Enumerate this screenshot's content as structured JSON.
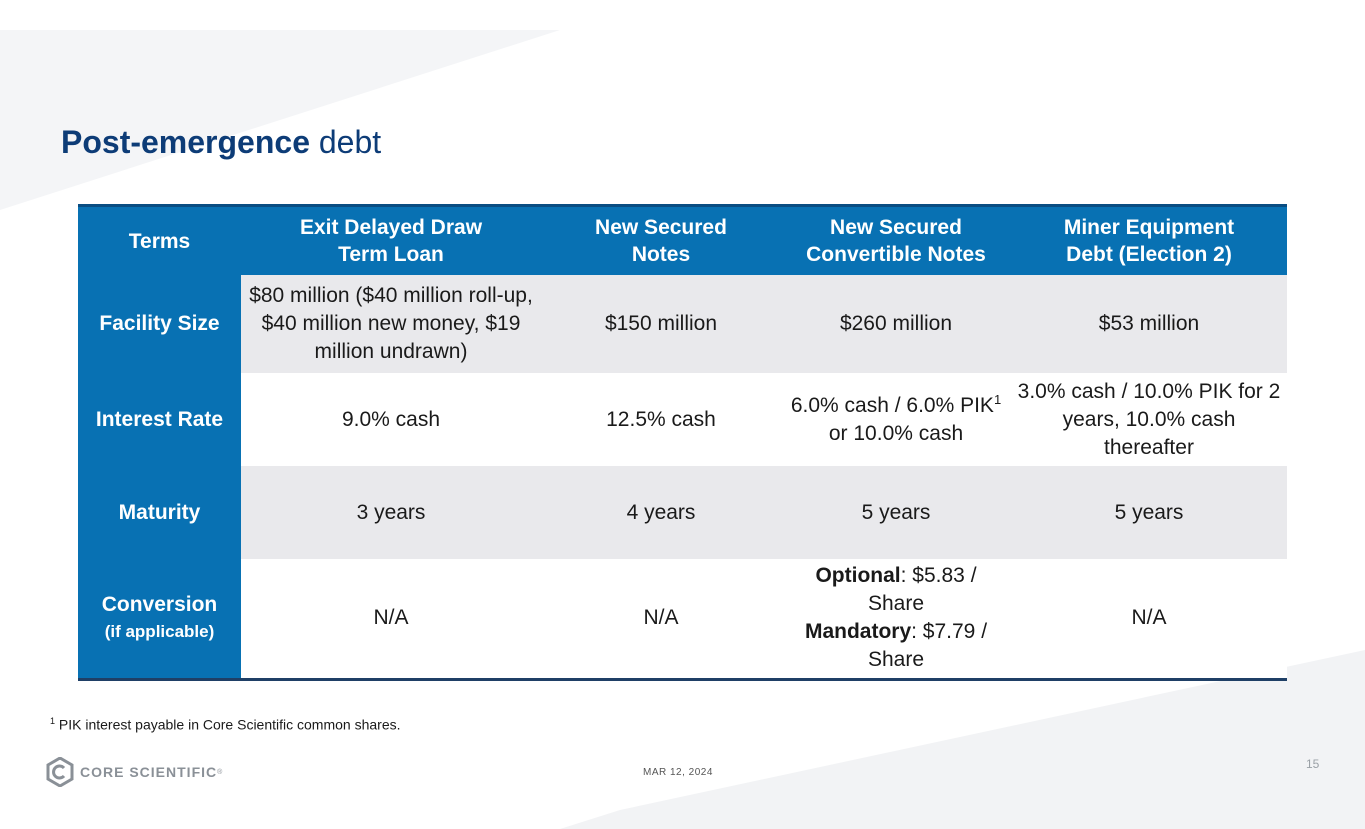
{
  "title": {
    "bold": "Post-emergence",
    "rest": " debt"
  },
  "table": {
    "headers": [
      "Terms",
      "Exit Delayed Draw",
      "Term Loan",
      "New Secured",
      "Notes",
      "New Secured",
      "Convertible Notes",
      "Miner Equipment",
      "Debt (Election 2)"
    ],
    "rows": {
      "facility": {
        "label": "Facility Size",
        "c1": "$80 million ($40 million roll-up, $40 million new money, $19 million undrawn)",
        "c2": "$150 million",
        "c3": "$260 million",
        "c4": "$53 million"
      },
      "interest": {
        "label": "Interest Rate",
        "c1": "9.0% cash",
        "c2": "12.5% cash",
        "c3a": "6.0% cash / 6.0% PIK",
        "c3sup": "1",
        "c3b": "or 10.0% cash",
        "c4": "3.0% cash / 10.0% PIK for 2 years, 10.0% cash thereafter"
      },
      "maturity": {
        "label": "Maturity",
        "c1": "3 years",
        "c2": "4 years",
        "c3": "5 years",
        "c4": "5 years"
      },
      "conversion": {
        "label": "Conversion",
        "sublabel": "(if applicable)",
        "c1": "N/A",
        "c2": "N/A",
        "opt_label": "Optional",
        "opt_value": ": $5.83 / Share",
        "mand_label": "Mandatory",
        "mand_value": ": $7.79 / Share",
        "c4": "N/A"
      }
    }
  },
  "footnote": {
    "mark": "1",
    "text": " PIK interest payable in Core Scientific common shares."
  },
  "footer": {
    "logo_text": "CORE SCIENTIFIC",
    "logo_reg": "®",
    "date": "MAR 12, 2024",
    "page": "15"
  },
  "colors": {
    "title": "#0d3c77",
    "header": "#0871b3",
    "shade": "#e9e9ec"
  }
}
